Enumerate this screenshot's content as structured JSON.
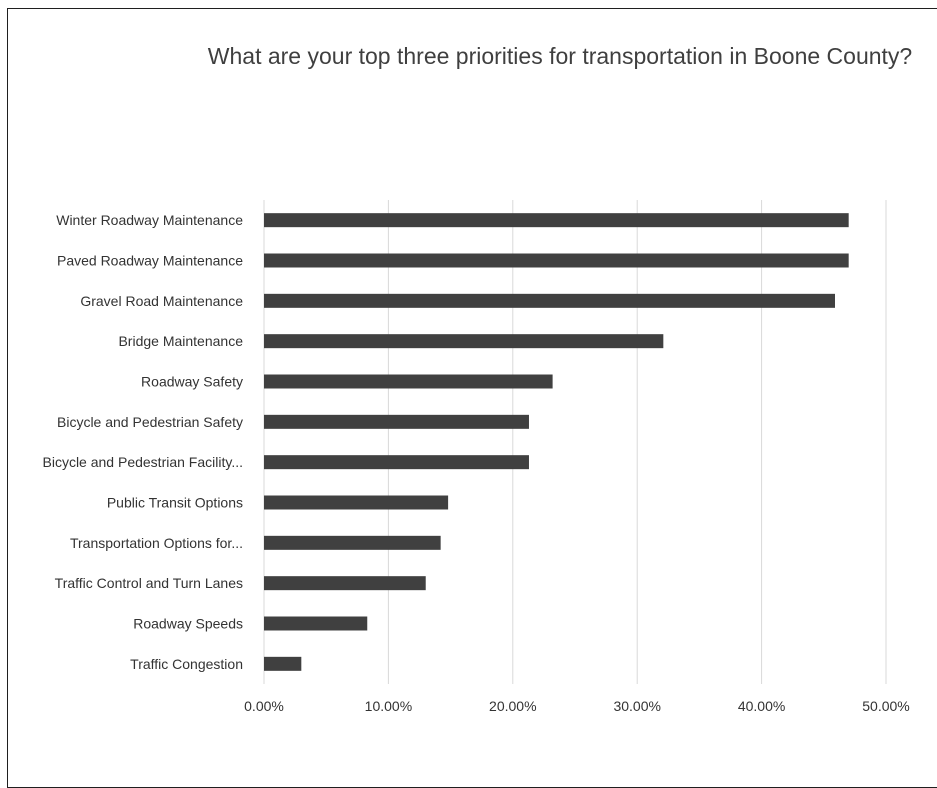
{
  "chart_data": {
    "type": "bar",
    "orientation": "horizontal",
    "title": "What are your top three priorities for transportation in Boone County?",
    "categories": [
      "Winter Roadway Maintenance",
      "Paved Roadway Maintenance",
      "Gravel Road Maintenance",
      "Bridge Maintenance",
      "Roadway Safety",
      "Bicycle and Pedestrian Safety",
      "Bicycle and Pedestrian Facility...",
      "Public Transit Options",
      "Transportation Options for...",
      "Traffic Control and Turn Lanes",
      "Roadway Speeds",
      "Traffic Congestion"
    ],
    "values": [
      0.47,
      0.47,
      0.459,
      0.321,
      0.232,
      0.213,
      0.213,
      0.148,
      0.142,
      0.13,
      0.083,
      0.03
    ],
    "xlim": [
      0,
      0.5
    ],
    "xticks": [
      0,
      0.1,
      0.2,
      0.3,
      0.4,
      0.5
    ],
    "xtick_labels": [
      "0.00%",
      "10.00%",
      "20.00%",
      "30.00%",
      "40.00%",
      "50.00%"
    ],
    "xlabel": "",
    "ylabel": "",
    "grid": "vertical",
    "legend": "none",
    "bar_color": "#404040",
    "grid_color": "#d9d9d9"
  }
}
